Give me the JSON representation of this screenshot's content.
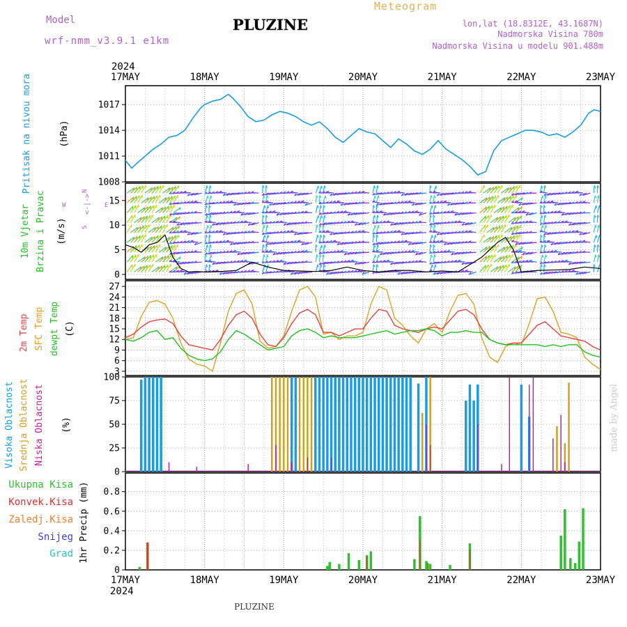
{
  "header": {
    "model_label": "Model",
    "model_name": "wrf-nmm_v3.9.1 e1km",
    "title": "PLUZINE",
    "meteogram": "Meteogram",
    "lonlat": "lon,lat (18.8312E, 43.1687N)",
    "elev": "Nadmorska Visina 780m",
    "elev_model": "Nadmorska Visina u modelu 901.488m",
    "footer": "PLUZINE",
    "watermark": "made by Angel"
  },
  "colors": {
    "pressure": "#1a9ce0",
    "t2m": "#e84040",
    "sfc": "#e0a020",
    "dew": "#22c022",
    "high_cloud": "#1a9ce0",
    "mid_cloud": "#d0a020",
    "low_cloud": "#c020a0",
    "total_precip": "#30c030",
    "conv_precip": "#e03030",
    "zaled": "#f08030",
    "snow": "#4040e0",
    "grad": "#30c0c0",
    "wind_label": "#22c022",
    "wind_label2": "#22c022",
    "purple": "#b060d0",
    "meteogram": "#e0b060",
    "black": "#000000"
  },
  "chart_data": [
    {
      "id": "pressure",
      "type": "line",
      "time_labels_top": [
        "17MAY",
        "18MAY",
        "19MAY",
        "20MAY",
        "21MAY",
        "22MAY",
        "23MAY"
      ],
      "year_top": "2024",
      "ylabel_lines": [
        "Pritisak na nivou mora"
      ],
      "unit": "(hPa)",
      "yticks": [
        1008,
        1011,
        1014,
        1017
      ],
      "ylim": [
        1008,
        1019.2
      ],
      "x_days": [
        0,
        6
      ],
      "x": [
        0,
        0.08,
        0.15,
        0.25,
        0.35,
        0.45,
        0.55,
        0.65,
        0.75,
        0.85,
        0.95,
        1.0,
        1.1,
        1.2,
        1.3,
        1.35,
        1.45,
        1.55,
        1.65,
        1.75,
        1.85,
        1.95,
        2.05,
        2.15,
        2.25,
        2.35,
        2.45,
        2.55,
        2.65,
        2.75,
        2.85,
        2.95,
        3.05,
        3.15,
        3.25,
        3.35,
        3.45,
        3.55,
        3.65,
        3.75,
        3.85,
        3.95,
        4.05,
        4.15,
        4.25,
        4.35,
        4.45,
        4.55,
        4.65,
        4.75,
        4.85,
        4.95,
        5.05,
        5.15,
        5.25,
        5.35,
        5.45,
        5.55,
        5.65,
        5.75,
        5.85,
        5.92,
        6.0
      ],
      "values": [
        1010.5,
        1009.6,
        1010.2,
        1011.0,
        1011.8,
        1012.4,
        1013.2,
        1013.4,
        1014.0,
        1015.4,
        1016.6,
        1017.0,
        1017.4,
        1017.6,
        1018.2,
        1017.8,
        1016.8,
        1015.6,
        1015.0,
        1015.2,
        1015.8,
        1016.2,
        1016.0,
        1015.6,
        1015.0,
        1014.6,
        1015.0,
        1014.2,
        1013.2,
        1012.6,
        1013.4,
        1014.2,
        1013.8,
        1013.6,
        1012.8,
        1012.0,
        1013.0,
        1012.4,
        1011.6,
        1011.2,
        1011.8,
        1012.8,
        1011.8,
        1011.2,
        1010.6,
        1009.8,
        1008.8,
        1009.2,
        1011.6,
        1012.8,
        1013.2,
        1013.6,
        1014.0,
        1014.0,
        1013.8,
        1013.4,
        1013.6,
        1013.2,
        1013.8,
        1014.6,
        1016.0,
        1016.4,
        1016.2
      ]
    },
    {
      "id": "wind",
      "type": "scatter",
      "ylabel_lines": [
        "10m Vjetar",
        "Brzina i Pravac"
      ],
      "unit": "(m/s)",
      "compass": "<-|->",
      "compass_left": "W",
      "compass_right": "E",
      "compass_top": "N",
      "compass_bottom": "S",
      "yticks": [
        0,
        5,
        10,
        15
      ],
      "ylim": [
        -1,
        18.5
      ],
      "x": [
        0,
        0.1,
        0.2,
        0.3,
        0.4,
        0.5,
        0.6,
        0.7,
        0.8,
        0.9,
        1.0,
        1.2,
        1.4,
        1.6,
        1.8,
        2.0,
        2.2,
        2.4,
        2.6,
        2.8,
        3.0,
        3.2,
        3.4,
        3.6,
        3.8,
        4.0,
        4.2,
        4.4,
        4.5,
        4.6,
        4.7,
        4.8,
        4.9,
        5.0,
        5.2,
        5.4,
        5.6,
        5.8,
        6.0
      ],
      "speed": [
        6.0,
        5.5,
        4.5,
        6.0,
        6.5,
        8.0,
        3.5,
        1.2,
        0.5,
        0.6,
        0.5,
        0.6,
        0.8,
        2.5,
        1.5,
        0.8,
        0.7,
        0.6,
        0.8,
        1.5,
        0.8,
        0.5,
        0.8,
        0.8,
        0.5,
        0.7,
        0.5,
        2.5,
        3.5,
        5.0,
        6.5,
        7.5,
        5.0,
        0.5,
        0.8,
        0.9,
        1.0,
        1.5,
        1.2
      ]
    },
    {
      "id": "temperature",
      "type": "line",
      "ylabel_lines": [
        "2m Temp",
        "SFC Temp",
        "dewpt Temp"
      ],
      "unit": "(C)",
      "yticks": [
        3,
        6,
        9,
        12,
        15,
        18,
        21,
        24,
        27
      ],
      "ylim": [
        1.8,
        28.6
      ],
      "x": [
        0,
        0.1,
        0.2,
        0.3,
        0.4,
        0.5,
        0.6,
        0.7,
        0.8,
        0.9,
        1.0,
        1.1,
        1.2,
        1.3,
        1.4,
        1.5,
        1.6,
        1.7,
        1.8,
        1.9,
        2.0,
        2.1,
        2.2,
        2.3,
        2.4,
        2.5,
        2.6,
        2.7,
        2.8,
        2.9,
        3.0,
        3.1,
        3.2,
        3.3,
        3.4,
        3.5,
        3.6,
        3.7,
        3.8,
        3.9,
        4.0,
        4.1,
        4.2,
        4.3,
        4.4,
        4.5,
        4.6,
        4.7,
        4.8,
        4.9,
        5.0,
        5.1,
        5.2,
        5.3,
        5.4,
        5.5,
        5.6,
        5.7,
        5.8,
        5.9,
        6.0
      ],
      "series": [
        {
          "name": "2m Temp",
          "values": [
            12.5,
            13.5,
            15.5,
            17.0,
            17.5,
            17.8,
            16.5,
            13.0,
            10.5,
            10.0,
            9.5,
            9.0,
            12.0,
            16.0,
            19.0,
            20.0,
            18.0,
            13.5,
            10.5,
            10.0,
            12.5,
            16.5,
            19.5,
            20.5,
            19.0,
            14.0,
            14.0,
            13.0,
            14.0,
            15.0,
            15.0,
            18.0,
            20.5,
            20.0,
            16.0,
            15.0,
            14.5,
            14.0,
            15.0,
            15.5,
            15.0,
            17.5,
            20.0,
            20.5,
            19.0,
            15.0,
            12.0,
            11.0,
            10.5,
            11.0,
            11.0,
            13.5,
            16.0,
            17.0,
            15.0,
            13.0,
            12.5,
            12.0,
            11.5,
            10.0,
            9.0
          ]
        },
        {
          "name": "SFC Temp",
          "values": [
            12.0,
            12.5,
            18.5,
            22.5,
            23.0,
            22.0,
            18.0,
            11.0,
            6.5,
            5.0,
            4.5,
            3.0,
            11.0,
            20.0,
            25.0,
            26.0,
            22.0,
            11.5,
            9.5,
            10.0,
            13.0,
            20.0,
            26.0,
            27.0,
            24.0,
            13.5,
            14.0,
            12.0,
            13.0,
            13.0,
            14.0,
            22.0,
            27.0,
            26.0,
            18.0,
            16.0,
            13.0,
            11.0,
            15.0,
            16.5,
            14.0,
            20.0,
            24.5,
            25.0,
            22.0,
            12.5,
            7.0,
            5.5,
            10.0,
            11.0,
            10.5,
            16.5,
            23.5,
            24.0,
            20.0,
            14.0,
            13.5,
            12.5,
            7.0,
            5.0,
            3.5
          ]
        },
        {
          "name": "dewpt Temp",
          "values": [
            12.0,
            11.5,
            12.5,
            14.0,
            14.5,
            12.0,
            12.5,
            9.5,
            7.5,
            6.5,
            6.0,
            6.5,
            8.5,
            12.0,
            14.5,
            13.5,
            12.0,
            10.5,
            9.0,
            9.5,
            10.0,
            13.0,
            14.5,
            15.0,
            14.0,
            12.5,
            13.0,
            12.5,
            12.5,
            12.5,
            13.0,
            13.5,
            14.0,
            14.5,
            13.5,
            14.0,
            14.5,
            14.5,
            15.0,
            14.5,
            13.0,
            14.0,
            14.0,
            14.5,
            14.0,
            14.0,
            12.0,
            11.0,
            10.5,
            10.5,
            10.5,
            10.5,
            10.5,
            10.0,
            10.5,
            10.0,
            10.5,
            10.5,
            8.5,
            7.5,
            7.0
          ]
        }
      ]
    },
    {
      "id": "clouds",
      "type": "bar",
      "ylabel_lines": [
        "Visoka Oblacnost",
        "Srednja Oblacnost",
        "Niska Oblacnost"
      ],
      "unit": "(%)",
      "yticks": [
        0,
        25,
        50,
        75,
        100
      ],
      "ylim": [
        0,
        100
      ],
      "series": [
        {
          "name": "Visoka Oblacnost",
          "x": [
            0.2,
            0.25,
            0.3,
            0.35,
            0.4,
            0.45,
            2.1,
            2.15,
            2.4,
            2.45,
            2.5,
            2.55,
            2.6,
            2.65,
            2.7,
            2.75,
            2.8,
            2.85,
            2.9,
            2.95,
            3.0,
            3.05,
            3.1,
            3.15,
            3.2,
            3.25,
            3.3,
            3.35,
            3.4,
            3.45,
            3.5,
            3.55,
            3.6,
            3.7,
            3.8,
            4.3,
            4.35,
            4.4,
            4.45,
            5.0,
            5.1
          ],
          "values": [
            97,
            100,
            100,
            100,
            100,
            100,
            100,
            100,
            100,
            100,
            100,
            100,
            100,
            100,
            100,
            100,
            100,
            100,
            100,
            100,
            100,
            100,
            100,
            100,
            100,
            100,
            100,
            100,
            100,
            100,
            100,
            100,
            100,
            93,
            100,
            75,
            92,
            75,
            92,
            92,
            58
          ]
        },
        {
          "name": "Srednja Oblacnost",
          "x": [
            1.85,
            1.9,
            1.95,
            2.0,
            2.05,
            2.2,
            2.25,
            2.3,
            2.35,
            2.4,
            2.6,
            2.7,
            2.8,
            3.7,
            3.75,
            3.8,
            3.85,
            5.45,
            5.55,
            5.6
          ],
          "values": [
            100,
            100,
            100,
            100,
            100,
            100,
            100,
            100,
            100,
            100,
            100,
            70,
            100,
            53,
            62,
            100,
            100,
            48,
            30,
            94
          ]
        },
        {
          "name": "Niska Oblacnost",
          "x": [
            0.55,
            0.9,
            1.55,
            1.9,
            2.1,
            2.3,
            2.6,
            3.8,
            3.85,
            4.45,
            4.75,
            4.85,
            5.1,
            5.15,
            5.4,
            5.5,
            5.55
          ],
          "values": [
            10,
            5,
            8,
            28,
            10,
            15,
            15,
            50,
            28,
            50,
            8,
            100,
            92,
            100,
            35,
            60,
            10
          ]
        }
      ]
    },
    {
      "id": "precip",
      "type": "bar",
      "ylabel_lines": [
        "Ukupna Kisa",
        "Konvek.Kisa",
        "Zaledj.Kisa",
        "Snijeg",
        "Grad"
      ],
      "unit": "1hr Precip (mm)",
      "yticks": [
        0,
        0.2,
        0.4,
        0.6,
        0.8
      ],
      "ylim": [
        0,
        0.99
      ],
      "time_labels_bottom": [
        "17MAY",
        "18MAY",
        "19MAY",
        "20MAY",
        "21MAY",
        "22MAY",
        "23MAY"
      ],
      "year_bottom": "2024",
      "series": [
        {
          "name": "Ukupna Kisa",
          "x": [
            0.18,
            0.28,
            2.55,
            2.58,
            2.7,
            2.82,
            2.95,
            3.05,
            3.1,
            3.65,
            3.72,
            3.8,
            3.85,
            4.1,
            4.35,
            5.5,
            5.55,
            5.62,
            5.68,
            5.73,
            5.78
          ],
          "values": [
            0.03,
            0.28,
            0.04,
            0.08,
            0.06,
            0.17,
            0.1,
            0.15,
            0.19,
            0.11,
            0.55,
            0.09,
            0.06,
            0.05,
            0.27,
            0.35,
            0.62,
            0.12,
            0.07,
            0.29,
            0.63
          ]
        },
        {
          "name": "Konvek.Kisa",
          "x": [
            0.28,
            3.05,
            3.72,
            3.82,
            4.35
          ],
          "values": [
            0.28,
            0.14,
            0.3,
            0.07,
            0.2
          ]
        }
      ]
    }
  ]
}
